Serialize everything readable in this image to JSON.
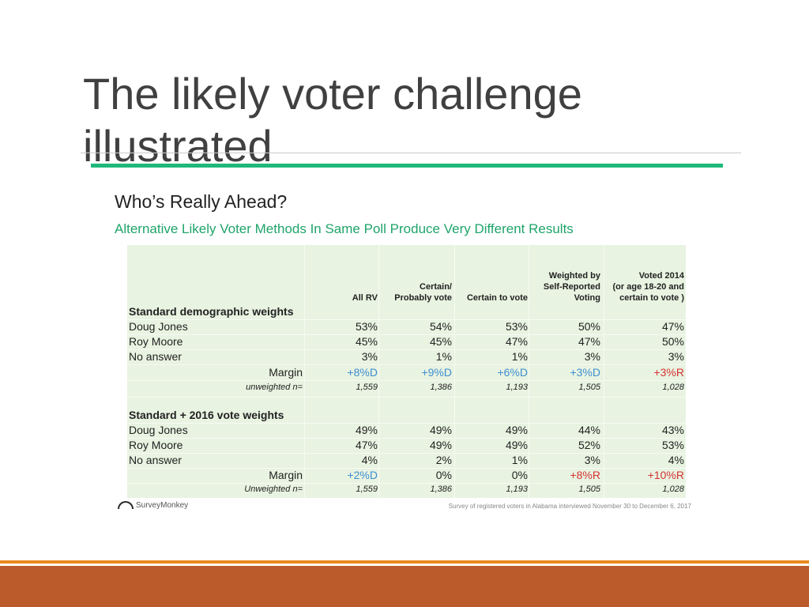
{
  "slide": {
    "title": "The likely voter challenge illustrated"
  },
  "poll": {
    "title": "Who’s Really Ahead?",
    "subtitle": "Alternative Likely Voter Methods In Same Poll Produce Very Different Results",
    "columns": [
      "All RV",
      "Certain/\nProbably vote",
      "Certain to vote",
      "Weighted by\nSelf-Reported\nVoting",
      "Voted 2014\n(or age 18-20 and\ncertain to vote )"
    ],
    "sections": [
      {
        "heading": "Standard demographic weights",
        "rows": [
          {
            "label": "Doug Jones",
            "values": [
              "53%",
              "54%",
              "53%",
              "50%",
              "47%"
            ]
          },
          {
            "label": "Roy Moore",
            "values": [
              "45%",
              "45%",
              "47%",
              "47%",
              "50%"
            ]
          },
          {
            "label": "No answer",
            "values": [
              "3%",
              "1%",
              "1%",
              "3%",
              "3%"
            ]
          }
        ],
        "margin_label": "Margin",
        "margin": [
          "+8%D",
          "+9%D",
          "+6%D",
          "+3%D",
          "+3%R"
        ],
        "n_label": "unweighted n=",
        "n": [
          "1,559",
          "1,386",
          "1,193",
          "1,505",
          "1,028"
        ]
      },
      {
        "heading": "Standard + 2016 vote weights",
        "rows": [
          {
            "label": "Doug Jones",
            "values": [
              "49%",
              "49%",
              "49%",
              "44%",
              "43%"
            ]
          },
          {
            "label": "Roy Moore",
            "values": [
              "47%",
              "49%",
              "49%",
              "52%",
              "53%"
            ]
          },
          {
            "label": "No answer",
            "values": [
              "4%",
              "2%",
              "1%",
              "3%",
              "4%"
            ]
          }
        ],
        "margin_label": "Margin",
        "margin": [
          "+2%D",
          "0%",
          "0%",
          "+8%R",
          "+10%R"
        ],
        "n_label": "Unweighted n=",
        "n": [
          "1,559",
          "1,386",
          "1,193",
          "1,505",
          "1,028"
        ]
      }
    ],
    "logo_text": "SurveyMonkey",
    "footnote": "Survey of registered voters in Alabama interviewed November 30 to December 6, 2017"
  },
  "colors": {
    "accent_green": "#1fb87a",
    "table_bg": "#e8f3e1",
    "dem_blue": "#3f8fd2",
    "rep_red": "#d63333",
    "footer_orange": "#e8891c",
    "footer_rust": "#bb5a2a"
  }
}
